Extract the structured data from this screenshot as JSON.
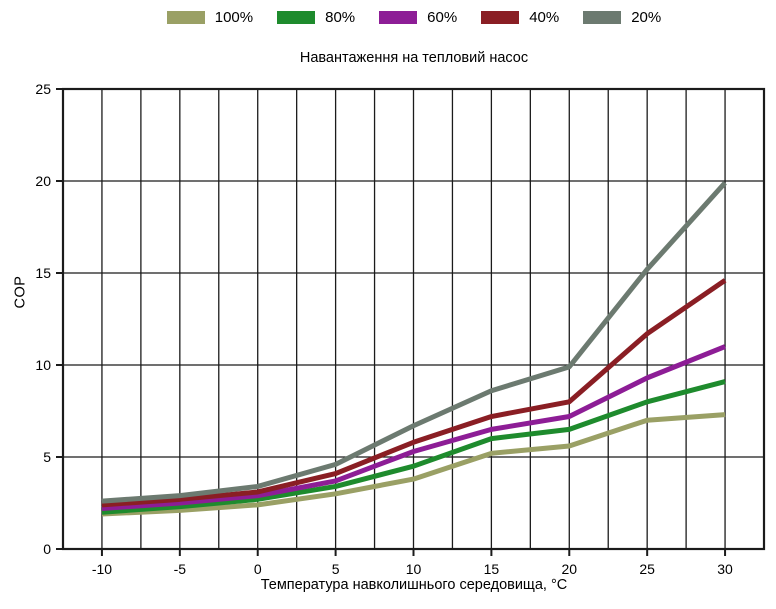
{
  "chart_data": {
    "type": "line",
    "title": "Навантаження на тепловий насос",
    "xlabel": "Температура навколишнього середовища, °C",
    "ylabel": "COP",
    "x": [
      -10,
      -5,
      0,
      5,
      10,
      15,
      20,
      25,
      30
    ],
    "x_ticks": [
      -10,
      -5,
      0,
      5,
      10,
      15,
      20,
      25,
      30
    ],
    "y_ticks": [
      0,
      5,
      10,
      15,
      20,
      25
    ],
    "xlim": [
      -12.5,
      32.5
    ],
    "ylim": [
      0,
      25
    ],
    "x_minor_grid_step": 2.5,
    "grid": true,
    "legend_position": "top",
    "series": [
      {
        "name": "100%",
        "color": "#9aa065",
        "values": [
          1.9,
          2.1,
          2.4,
          3.0,
          3.8,
          5.2,
          5.6,
          7.0,
          7.3
        ]
      },
      {
        "name": "80%",
        "color": "#1e8b2d",
        "values": [
          2.0,
          2.3,
          2.7,
          3.4,
          4.5,
          6.0,
          6.5,
          8.0,
          9.1
        ]
      },
      {
        "name": "60%",
        "color": "#8d1d96",
        "values": [
          2.2,
          2.5,
          2.9,
          3.7,
          5.3,
          6.5,
          7.2,
          9.3,
          11.0
        ]
      },
      {
        "name": "40%",
        "color": "#8a1e24",
        "values": [
          2.4,
          2.7,
          3.1,
          4.1,
          5.8,
          7.2,
          8.0,
          11.7,
          14.6
        ]
      },
      {
        "name": "20%",
        "color": "#6c7a70",
        "values": [
          2.6,
          2.9,
          3.4,
          4.6,
          6.7,
          8.6,
          9.9,
          15.2,
          19.9
        ]
      }
    ]
  },
  "colors": {
    "grid": "#1b1b1b",
    "frame": "#1b1b1b",
    "background": "#ffffff",
    "text": "#000000"
  }
}
